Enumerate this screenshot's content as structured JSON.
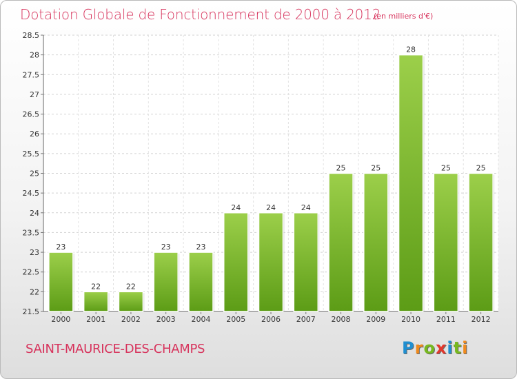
{
  "title": "Dotation Globale de Fonctionnement de 2000 à 2012",
  "subtitle": "(en milliers d'€)",
  "commune": "SAINT-MAURICE-DES-CHAMPS",
  "brand": {
    "letters": [
      "P",
      "r",
      "o",
      "x",
      "i",
      "t",
      "i"
    ],
    "colors": [
      "#1f8fd1",
      "#f08a1c",
      "#77b81f",
      "#e3372c",
      "#1f8fd1",
      "#77b81f",
      "#f08a1c"
    ]
  },
  "chart_data": {
    "type": "bar",
    "categories": [
      "2000",
      "2001",
      "2002",
      "2003",
      "2004",
      "2005",
      "2006",
      "2007",
      "2008",
      "2009",
      "2010",
      "2011",
      "2012"
    ],
    "values": [
      23,
      22,
      22,
      23,
      23,
      24,
      24,
      24,
      25,
      25,
      28,
      25,
      25
    ],
    "data_labels": [
      "23",
      "22",
      "22",
      "23",
      "23",
      "24",
      "24",
      "24",
      "25",
      "25",
      "28",
      "25",
      "25"
    ],
    "y_ticks": [
      21.5,
      22,
      22.5,
      23,
      23.5,
      24,
      24.5,
      25,
      25.5,
      26,
      26.5,
      27,
      27.5,
      28,
      28.5
    ],
    "ylim": [
      21.5,
      28.5
    ],
    "grid": true,
    "bar_color": "#7fbf33"
  }
}
